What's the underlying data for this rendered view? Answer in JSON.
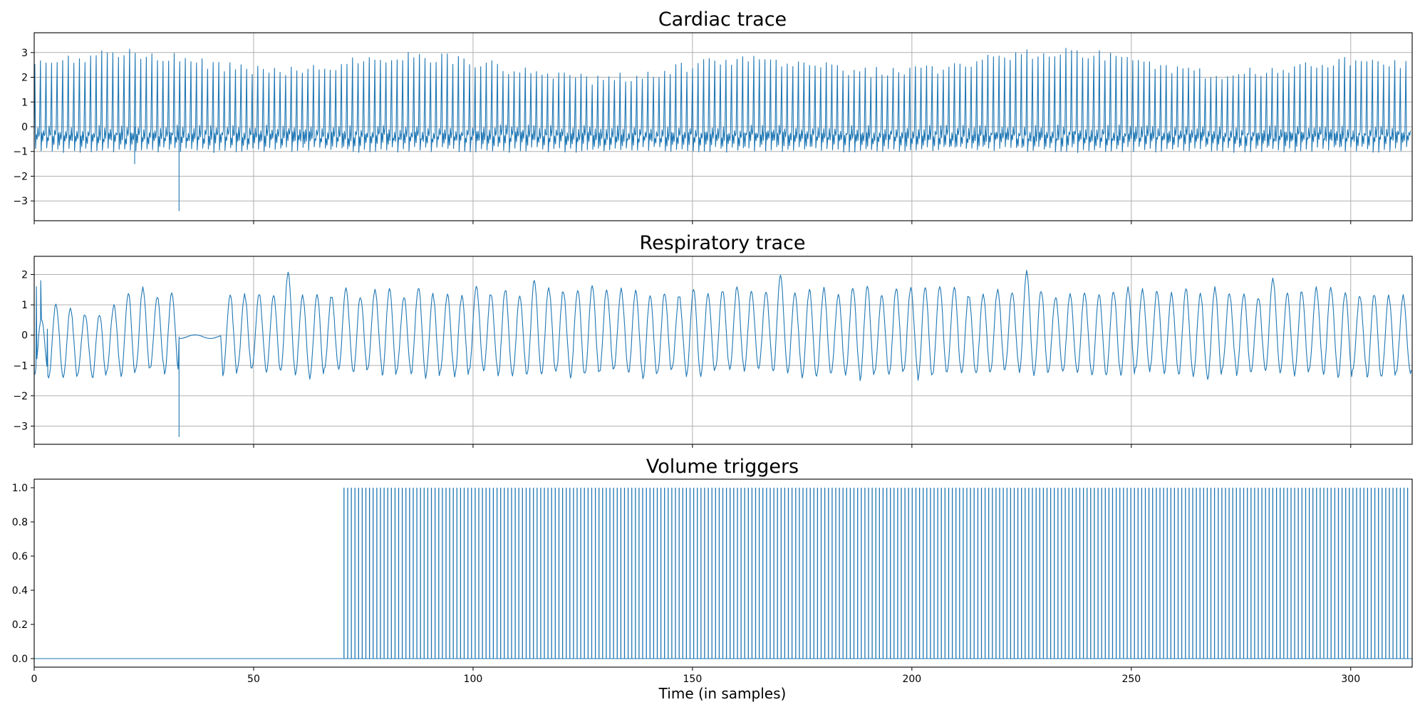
{
  "chart_data": [
    {
      "type": "line",
      "title": "Cardiac trace",
      "xlim": [
        0,
        314
      ],
      "ylim": [
        -3.8,
        3.8
      ],
      "yticks": [
        -3,
        -2,
        -1,
        0,
        1,
        2,
        3
      ],
      "ytick_labels": [
        "−3",
        "−2",
        "−1",
        "0",
        "1",
        "2",
        "3"
      ],
      "xticks": [
        0,
        50,
        100,
        150,
        200,
        250,
        300
      ],
      "grid": true,
      "color": "#1f77b4",
      "series": [
        {
          "waveform": "periodic cardiac pulses",
          "beat_period_samples": 1.27,
          "peak_range": [
            1.6,
            3.4
          ],
          "baseline_range": [
            -1.1,
            0.3
          ],
          "outliers": [
            {
              "x": 22.9,
              "y": -1.5
            },
            {
              "x": 33.0,
              "y": -3.4
            }
          ]
        }
      ]
    },
    {
      "type": "line",
      "title": "Respiratory trace",
      "xlim": [
        0,
        314
      ],
      "ylim": [
        -3.6,
        2.6
      ],
      "yticks": [
        -3,
        -2,
        -1,
        0,
        1,
        2
      ],
      "ytick_labels": [
        "−3",
        "−2",
        "−1",
        "0",
        "1",
        "2"
      ],
      "xticks": [
        0,
        50,
        100,
        150,
        200,
        250,
        300
      ],
      "grid": true,
      "color": "#1f77b4",
      "series": [
        {
          "waveform": "breathing oscillation",
          "period_samples": 3.3,
          "peak_range": [
            1.2,
            2.3
          ],
          "trough_range": [
            -1.8,
            -0.9
          ],
          "flat_segment": [
            33,
            43
          ],
          "outliers": [
            {
              "x": 33.0,
              "y": -3.35
            }
          ]
        }
      ]
    },
    {
      "type": "line",
      "title": "Volume triggers",
      "xlim": [
        0,
        314
      ],
      "ylim": [
        -0.05,
        1.05
      ],
      "yticks": [
        0.0,
        0.2,
        0.4,
        0.6,
        0.8,
        1.0
      ],
      "ytick_labels": [
        "0.0",
        "0.2",
        "0.4",
        "0.6",
        "0.8",
        "1.0"
      ],
      "xticks": [
        0,
        50,
        100,
        150,
        200,
        250,
        300
      ],
      "xtick_labels": [
        "0",
        "50",
        "100",
        "150",
        "200",
        "250",
        "300"
      ],
      "xlabel": "Time (in samples)",
      "grid": false,
      "color": "#1f77b4",
      "series": [
        {
          "waveform": "trigger pulses",
          "first_trigger": 70.6,
          "trigger_interval": 0.83,
          "last_trigger": 313,
          "low": 0,
          "high": 1
        }
      ]
    }
  ]
}
